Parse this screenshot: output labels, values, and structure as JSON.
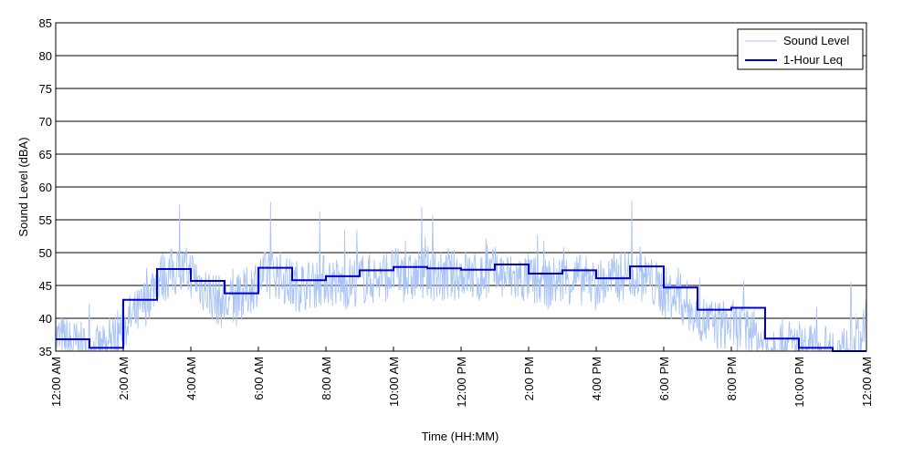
{
  "chart_data": {
    "type": "line",
    "title": "",
    "xlabel": "Time (HH:MM)",
    "ylabel": "Sound Level (dBA)",
    "xlim_hours": [
      0,
      24
    ],
    "ylim": [
      35,
      85
    ],
    "y_ticks": [
      35,
      40,
      45,
      50,
      55,
      60,
      65,
      70,
      75,
      80,
      85
    ],
    "y_tick_labels": [
      "35",
      "40",
      "45",
      "50",
      "55",
      "60",
      "65",
      "70",
      "75",
      "80",
      "85"
    ],
    "x_ticks_hours": [
      0,
      2,
      4,
      6,
      8,
      10,
      12,
      14,
      16,
      18,
      20,
      22,
      24
    ],
    "x_tick_labels": [
      "12:00 AM",
      "2:00 AM",
      "4:00 AM",
      "6:00 AM",
      "8:00 AM",
      "10:00 AM",
      "12:00 PM",
      "2:00 PM",
      "4:00 PM",
      "6:00 PM",
      "8:00 PM",
      "10:00 PM",
      "12:00 AM"
    ],
    "grid": "horizontal",
    "legend_position": "top-right",
    "colors": {
      "sound_level": "#a9c4f5",
      "leq": "#0000cc",
      "grid": "#000000"
    },
    "series": [
      {
        "name": "Sound Level",
        "style": "thin-line",
        "x_hours": [
          0,
          0.5,
          1,
          1.5,
          2,
          2.5,
          3,
          3.5,
          4,
          4.5,
          5,
          5.5,
          6,
          6.5,
          7,
          7.5,
          8,
          8.5,
          9,
          9.5,
          10,
          10.5,
          11,
          11.5,
          12,
          12.5,
          13,
          13.5,
          14,
          14.5,
          15,
          15.5,
          16,
          16.5,
          17,
          17.5,
          18,
          18.5,
          19,
          19.5,
          20,
          20.5,
          21,
          21.5,
          22,
          22.5,
          23,
          23.5,
          24
        ],
        "values": [
          37,
          36,
          35,
          35,
          39,
          41,
          46,
          47,
          47,
          44,
          42,
          43,
          46,
          47,
          45,
          45,
          46,
          45,
          46,
          46,
          47,
          46,
          47,
          46,
          47,
          46,
          47,
          46,
          46,
          45,
          46,
          46,
          45,
          46,
          47,
          46,
          44,
          43,
          40,
          39,
          39,
          38,
          36,
          36,
          36,
          35,
          35,
          35,
          38
        ]
      },
      {
        "name": "1-Hour Leq",
        "style": "step",
        "x_hours": [
          0,
          1,
          2,
          3,
          4,
          5,
          6,
          7,
          8,
          9,
          10,
          11,
          12,
          13,
          14,
          15,
          16,
          17,
          18,
          19,
          20,
          21,
          22,
          23
        ],
        "values": [
          36.8,
          35.5,
          42.8,
          47.5,
          45.7,
          43.8,
          47.7,
          45.8,
          46.4,
          47.3,
          47.8,
          47.6,
          47.4,
          48.2,
          46.8,
          47.3,
          46.1,
          47.9,
          44.7,
          41.3,
          41.6,
          36.9,
          35.5,
          34.6
        ]
      }
    ]
  }
}
